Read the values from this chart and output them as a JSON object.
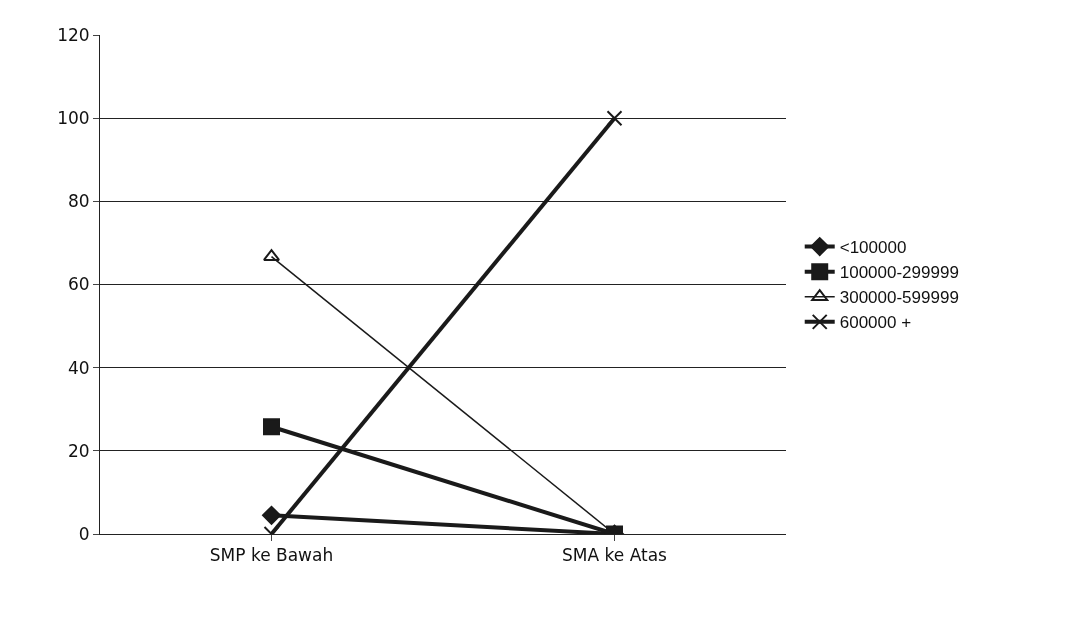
{
  "chart_data": {
    "type": "line",
    "categories": [
      "SMP ke Bawah",
      "SMA ke Atas"
    ],
    "ylim": [
      0,
      120
    ],
    "yticks": [
      0,
      20,
      40,
      60,
      80,
      100,
      120
    ],
    "grid": "y",
    "legend": "right",
    "series": [
      {
        "name": "<100000",
        "color": "#1a1a1a",
        "marker": "diamond",
        "values": [
          4.5,
          0
        ]
      },
      {
        "name": "100000-299999",
        "color": "#1a1a1a",
        "marker": "square",
        "values": [
          25.8,
          0
        ]
      },
      {
        "name": "300000-599999",
        "color": "#1a1a1a",
        "marker": "triangle",
        "values": [
          66.7,
          0
        ]
      },
      {
        "name": "600000 +",
        "color": "#1a1a1a",
        "marker": "cross",
        "values": [
          0,
          100
        ]
      }
    ]
  }
}
